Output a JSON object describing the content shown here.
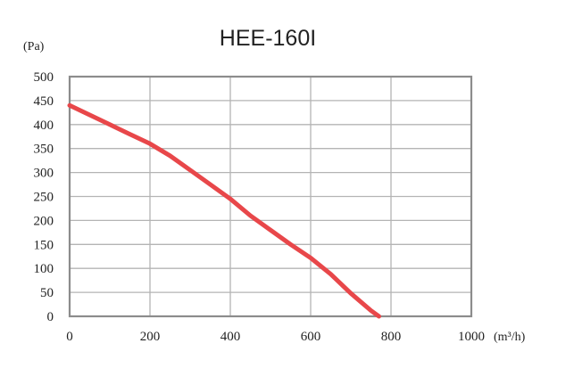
{
  "chart_data": {
    "type": "line",
    "title": "HEE-160I",
    "ylabel": "(Pa)",
    "xlabel": "(m³/h)",
    "xlim": [
      0,
      1000
    ],
    "ylim": [
      0,
      500
    ],
    "x_ticks": [
      0,
      200,
      400,
      600,
      800,
      1000
    ],
    "y_ticks": [
      0,
      50,
      100,
      150,
      200,
      250,
      300,
      350,
      400,
      450,
      500
    ],
    "grid": true,
    "series": [
      {
        "color": "#e8474a",
        "x": [
          0,
          50,
          100,
          150,
          200,
          250,
          300,
          350,
          400,
          450,
          500,
          550,
          600,
          650,
          700,
          750,
          770
        ],
        "y": [
          440,
          420,
          400,
          380,
          360,
          335,
          305,
          275,
          245,
          210,
          180,
          150,
          122,
          88,
          48,
          12,
          0
        ]
      }
    ]
  }
}
